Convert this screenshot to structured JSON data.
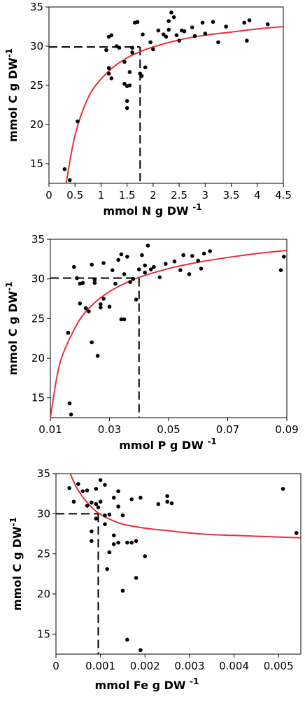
{
  "chart_data": [
    {
      "type": "scatter",
      "xlabel": "mmol N g DW",
      "xlabel_exp": "-1",
      "ylabel": "mmol C g DW",
      "ylabel_exp": "-1",
      "xlim": [
        0,
        4.5
      ],
      "ylim": [
        12.5,
        35
      ],
      "xticks": [
        "0",
        "0.5",
        "1",
        "1.5",
        "2",
        "2.5",
        "3",
        "3.5",
        "4",
        "4.5"
      ],
      "xtick_values": [
        0,
        0.5,
        1,
        1.5,
        2,
        2.5,
        3,
        3.5,
        4,
        4.5
      ],
      "yticks": [
        "15",
        "20",
        "25",
        "30",
        "35"
      ],
      "ytick_values": [
        15,
        20,
        25,
        30,
        35
      ],
      "curve": {
        "color": "#e8303a",
        "x": [
          0.33,
          0.5,
          0.75,
          1.0,
          1.25,
          1.5,
          1.75,
          2.0,
          2.5,
          3.0,
          3.5,
          4.0,
          4.5
        ],
        "y": [
          12.5,
          18.6,
          23.4,
          25.8,
          27.4,
          28.5,
          29.3,
          29.9,
          30.8,
          31.4,
          31.8,
          32.2,
          32.5
        ]
      },
      "reference_line": {
        "x": 1.75,
        "y": 29.9
      },
      "points": {
        "x": [
          0.3,
          0.4,
          0.55,
          1.1,
          1.15,
          1.15,
          1.2,
          1.15,
          1.2,
          1.3,
          1.35,
          1.45,
          1.45,
          1.5,
          1.5,
          1.5,
          1.55,
          1.55,
          1.6,
          1.6,
          1.65,
          1.7,
          1.75,
          1.78,
          1.8,
          1.85,
          1.95,
          2.0,
          2.1,
          2.2,
          2.25,
          2.3,
          2.3,
          2.35,
          2.4,
          2.45,
          2.5,
          2.55,
          2.6,
          2.75,
          2.8,
          2.95,
          3.0,
          3.15,
          3.25,
          3.4,
          3.75,
          3.8,
          3.85,
          4.2
        ],
        "y": [
          14.3,
          12.9,
          20.4,
          29.5,
          27.2,
          26.5,
          25.9,
          31.2,
          31.4,
          30.0,
          29.8,
          28.0,
          25.2,
          24.9,
          23.0,
          22.1,
          26.7,
          25.0,
          29.8,
          29.2,
          33.0,
          33.1,
          26.5,
          26.2,
          31.5,
          27.3,
          30.5,
          29.6,
          32.0,
          31.5,
          31.2,
          33.2,
          32.1,
          34.3,
          33.7,
          31.4,
          30.7,
          32.0,
          31.9,
          32.4,
          31.3,
          33.0,
          31.6,
          33.1,
          30.5,
          32.5,
          33.0,
          30.7,
          33.3,
          32.8
        ]
      }
    },
    {
      "type": "scatter",
      "xlabel": "mmol P g DW",
      "xlabel_exp": "-1",
      "ylabel": "mmol C g DW",
      "ylabel_exp": "-1",
      "xlim": [
        0.01,
        0.09
      ],
      "ylim": [
        12.5,
        35
      ],
      "xticks": [
        "0.01",
        "0.03",
        "0.05",
        "0.07",
        "0.09"
      ],
      "xtick_values": [
        0.01,
        0.03,
        0.05,
        0.07,
        0.09
      ],
      "yticks": [
        "15",
        "20",
        "25",
        "30",
        "35"
      ],
      "ytick_values": [
        15,
        20,
        25,
        30,
        35
      ],
      "curve": {
        "color": "#e8303a",
        "x": [
          0.01,
          0.0125,
          0.015,
          0.02,
          0.025,
          0.03,
          0.035,
          0.04,
          0.05,
          0.06,
          0.07,
          0.08,
          0.09
        ],
        "y": [
          12.5,
          18.2,
          21.2,
          24.9,
          27.0,
          28.4,
          29.4,
          30.2,
          31.3,
          32.1,
          32.7,
          33.2,
          33.6
        ]
      },
      "reference_line": {
        "x": 0.04,
        "y": 30.1
      },
      "points": {
        "x": [
          0.016,
          0.0165,
          0.017,
          0.018,
          0.019,
          0.02,
          0.02,
          0.021,
          0.022,
          0.023,
          0.024,
          0.024,
          0.025,
          0.025,
          0.026,
          0.027,
          0.027,
          0.028,
          0.028,
          0.03,
          0.031,
          0.032,
          0.033,
          0.034,
          0.034,
          0.035,
          0.035,
          0.036,
          0.037,
          0.038,
          0.039,
          0.04,
          0.041,
          0.042,
          0.042,
          0.043,
          0.044,
          0.045,
          0.047,
          0.049,
          0.052,
          0.054,
          0.055,
          0.057,
          0.058,
          0.06,
          0.061,
          0.062,
          0.064,
          0.088,
          0.089
        ],
        "y": [
          23.2,
          14.3,
          12.9,
          31.5,
          30.1,
          29.4,
          26.9,
          29.5,
          26.3,
          25.9,
          31.8,
          22.0,
          29.9,
          29.5,
          20.3,
          26.8,
          26.4,
          27.5,
          32.0,
          26.5,
          31.1,
          29.4,
          32.4,
          24.9,
          33.1,
          24.9,
          30.6,
          32.8,
          29.6,
          30.0,
          27.4,
          31.2,
          33.0,
          30.8,
          31.7,
          34.2,
          31.2,
          31.5,
          30.2,
          31.9,
          32.2,
          31.1,
          33.0,
          30.6,
          32.9,
          32.3,
          31.3,
          33.2,
          33.5,
          31.1,
          32.8
        ]
      }
    },
    {
      "type": "scatter",
      "xlabel": "mmol Fe g DW",
      "xlabel_exp": "-1",
      "ylabel": "mmol C g DW",
      "ylabel_exp": "-1",
      "xlim": [
        0,
        0.0055
      ],
      "ylim": [
        12.5,
        35
      ],
      "xticks": [
        "0",
        "0.001",
        "0.002",
        "0.003",
        "0.004",
        "0.005"
      ],
      "xtick_values": [
        0,
        0.001,
        0.002,
        0.003,
        0.004,
        0.005
      ],
      "yticks": [
        "15",
        "20",
        "25",
        "30",
        "35"
      ],
      "ytick_values": [
        15,
        20,
        25,
        30,
        35
      ],
      "curve": {
        "color": "#e8303a",
        "x": [
          0.00032,
          0.0004,
          0.0005,
          0.0007,
          0.0009,
          0.0011,
          0.0013,
          0.0015,
          0.002,
          0.0025,
          0.003,
          0.0035,
          0.004,
          0.0045,
          0.005,
          0.0055
        ],
        "y": [
          35.0,
          34.0,
          32.9,
          31.4,
          30.3,
          29.6,
          29.1,
          28.7,
          28.2,
          27.9,
          27.6,
          27.4,
          27.3,
          27.2,
          27.1,
          27.0
        ]
      },
      "reference_line": {
        "x": 0.00095,
        "y": 30.0
      },
      "points": {
        "x": [
          0.0003,
          0.0004,
          0.0005,
          0.0006,
          0.0007,
          0.0007,
          0.0008,
          0.0008,
          0.0009,
          0.0009,
          0.00095,
          0.001,
          0.001,
          0.0011,
          0.0011,
          0.00115,
          0.0012,
          0.0012,
          0.0013,
          0.0013,
          0.0014,
          0.0014,
          0.0015,
          0.0015,
          0.0016,
          0.0016,
          0.0017,
          0.0017,
          0.0018,
          0.0018,
          0.0019,
          0.0019,
          0.002,
          0.0023,
          0.0025,
          0.0025,
          0.0026,
          0.0051,
          0.0054,
          0.0008,
          0.0009,
          0.0011,
          0.0012,
          0.0013,
          0.0014
        ],
        "y": [
          33.2,
          31.5,
          33.7,
          32.8,
          31.0,
          32.9,
          31.4,
          26.6,
          31.2,
          33.1,
          30.8,
          34.2,
          31.5,
          28.7,
          33.6,
          23.1,
          29.9,
          25.2,
          26.2,
          27.3,
          32.8,
          26.4,
          29.8,
          20.4,
          26.4,
          14.3,
          31.8,
          26.4,
          26.6,
          22.0,
          13.0,
          32.0,
          24.7,
          31.2,
          31.5,
          32.2,
          31.3,
          33.1,
          27.6,
          27.8,
          29.4,
          29.8,
          25.2,
          32.0,
          30.9
        ]
      }
    }
  ]
}
